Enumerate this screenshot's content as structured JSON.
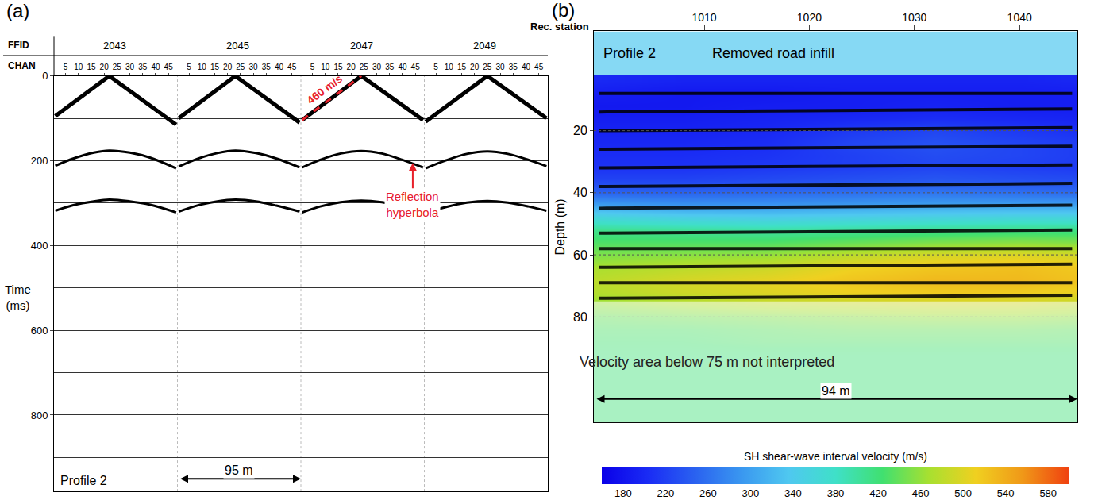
{
  "chart_data": [
    {
      "type": "seismic_record",
      "panel_label": "(a)",
      "header_labels": [
        "FFID",
        "CHAN"
      ],
      "yaxis_title": "Time (ms)",
      "profile_label": "Profile 2",
      "color": "#000000",
      "xlim": [
        0.5,
        192.5
      ],
      "channels_per_shot": 48,
      "chan_ticks": [
        5,
        10,
        15,
        20,
        25,
        30,
        35,
        40,
        45
      ],
      "ylim": [
        0,
        980
      ],
      "yticks": [
        0,
        200,
        400,
        600,
        800
      ],
      "grid": true,
      "shots": [
        {
          "ffid": 2043,
          "first_break": {
            "channels": [
              1,
              22,
              48
            ],
            "times": [
              95,
              0,
              115
            ]
          },
          "reflections": [
            {
              "channels": [
                1,
                8,
                16,
                22,
                30,
                38,
                48
              ],
              "times": [
                212,
                195,
                181,
                176,
                181,
                193,
                218
              ]
            },
            {
              "channels": [
                1,
                8,
                16,
                22,
                30,
                38,
                48
              ],
              "times": [
                318,
                305,
                296,
                292,
                296,
                304,
                322
              ]
            }
          ]
        },
        {
          "ffid": 2045,
          "first_break": {
            "channels": [
              1,
              23,
              48
            ],
            "times": [
              100,
              0,
              110
            ]
          },
          "reflections": [
            {
              "channels": [
                1,
                8,
                16,
                23,
                31,
                39,
                48
              ],
              "times": [
                214,
                196,
                182,
                176,
                182,
                195,
                216
              ]
            },
            {
              "channels": [
                1,
                8,
                16,
                23,
                31,
                39,
                48
              ],
              "times": [
                320,
                306,
                296,
                292,
                296,
                306,
                320
              ]
            }
          ]
        },
        {
          "ffid": 2047,
          "first_break": {
            "channels": [
              1,
              24,
              48
            ],
            "times": [
              104,
              0,
              104
            ]
          },
          "reflections": [
            {
              "channels": [
                1,
                8,
                16,
                24,
                32,
                40,
                48
              ],
              "times": [
                216,
                198,
                183,
                177,
                183,
                198,
                216
              ]
            },
            {
              "channels": [
                1,
                8,
                16,
                24,
                32,
                40,
                48
              ],
              "times": [
                322,
                308,
                298,
                294,
                298,
                308,
                322
              ]
            }
          ]
        },
        {
          "ffid": 2049,
          "first_break": {
            "channels": [
              1,
              25,
              48
            ],
            "times": [
              108,
              0,
              100
            ]
          },
          "reflections": [
            {
              "channels": [
                1,
                9,
                17,
                25,
                33,
                41,
                48
              ],
              "times": [
                218,
                199,
                184,
                178,
                184,
                198,
                213
              ]
            },
            {
              "channels": [
                1,
                9,
                17,
                25,
                33,
                41,
                48
              ],
              "times": [
                324,
                309,
                299,
                295,
                299,
                308,
                318
              ]
            }
          ]
        }
      ],
      "velocity_label": {
        "text": "460 m/s",
        "color": "#e8202a",
        "line_style": "dashed",
        "x": [
          97,
          120
        ],
        "y": [
          104,
          0
        ]
      },
      "reflection_label": {
        "text": "Reflection hyperbola",
        "color": "#e8202a",
        "x": 140,
        "y": 205
      },
      "scale_bar": {
        "text": "95 m",
        "x": [
          48.5,
          96.5
        ]
      }
    },
    {
      "type": "heatmap",
      "panel_label": "(b)",
      "profile_label": "Profile 2",
      "xaxis_title": "Rec. station",
      "yaxis_title": "Depth (m)",
      "color": "#000000",
      "xlim": [
        999.5,
        1045.5
      ],
      "xticks": [
        1010,
        1020,
        1030,
        1040
      ],
      "ylim": [
        -12,
        114
      ],
      "yticks": [
        20,
        40,
        60,
        80
      ],
      "grid": true,
      "x": [
        1000,
        1008,
        1016,
        1024,
        1032,
        1040,
        1048
      ],
      "y": [
        4,
        8,
        12,
        16,
        20,
        24,
        28,
        32,
        36,
        40,
        44,
        48,
        52,
        56,
        60,
        64,
        68,
        72,
        76,
        80,
        84,
        88,
        92,
        96,
        100,
        104,
        108,
        112
      ],
      "z": [
        [
          200,
          195,
          195,
          195,
          195,
          195,
          200
        ],
        [
          190,
          185,
          185,
          190,
          190,
          190,
          190
        ],
        [
          185,
          185,
          190,
          190,
          195,
          190,
          190
        ],
        [
          190,
          190,
          195,
          200,
          205,
          200,
          195
        ],
        [
          195,
          195,
          200,
          215,
          225,
          215,
          205
        ],
        [
          200,
          200,
          205,
          225,
          235,
          225,
          215
        ],
        [
          205,
          205,
          210,
          220,
          230,
          225,
          215
        ],
        [
          210,
          210,
          215,
          220,
          225,
          220,
          215
        ],
        [
          225,
          225,
          230,
          235,
          240,
          235,
          230
        ],
        [
          250,
          250,
          255,
          260,
          265,
          260,
          255
        ],
        [
          300,
          290,
          290,
          295,
          300,
          300,
          300
        ],
        [
          360,
          350,
          345,
          350,
          355,
          360,
          360
        ],
        [
          410,
          405,
          400,
          405,
          410,
          415,
          415
        ],
        [
          430,
          430,
          430,
          440,
          450,
          455,
          450
        ],
        [
          450,
          455,
          460,
          480,
          495,
          500,
          490
        ],
        [
          470,
          480,
          490,
          510,
          520,
          525,
          515
        ],
        [
          480,
          495,
          505,
          520,
          530,
          530,
          520
        ],
        [
          475,
          490,
          500,
          510,
          515,
          515,
          505
        ],
        [
          460,
          470,
          480,
          485,
          490,
          490,
          480
        ],
        [
          440,
          445,
          450,
          455,
          460,
          460,
          455
        ],
        [
          430,
          430,
          435,
          440,
          440,
          440,
          435
        ],
        [
          425,
          425,
          430,
          430,
          430,
          430,
          430
        ],
        [
          420,
          420,
          420,
          420,
          420,
          420,
          420
        ],
        [
          420,
          420,
          420,
          420,
          420,
          420,
          420
        ],
        [
          420,
          420,
          420,
          420,
          420,
          420,
          420
        ],
        [
          420,
          420,
          420,
          420,
          420,
          420,
          420
        ],
        [
          420,
          420,
          420,
          420,
          420,
          420,
          420
        ],
        [
          420,
          420,
          420,
          420,
          420,
          420,
          420
        ]
      ],
      "colorbar": {
        "title": "SH shear-wave interval velocity (m/s)",
        "range": [
          160,
          600
        ],
        "ticks": [
          180,
          220,
          260,
          300,
          340,
          380,
          420,
          460,
          500,
          540,
          580
        ]
      },
      "infill": {
        "label": "Removed road infill",
        "depth": [
          -12,
          2
        ]
      },
      "uninterpreted": {
        "label": "Velocity area below 75 m not interpreted",
        "below": 75
      },
      "reflectors": [
        {
          "x": [
            1000,
            1045
          ],
          "depth": [
            8,
            8
          ]
        },
        {
          "x": [
            1000,
            1045
          ],
          "depth": [
            14,
            13
          ]
        },
        {
          "x": [
            1000,
            1045
          ],
          "depth": [
            20,
            19
          ]
        },
        {
          "x": [
            1000,
            1045
          ],
          "depth": [
            26,
            25
          ]
        },
        {
          "x": [
            1000,
            1045
          ],
          "depth": [
            32,
            31
          ]
        },
        {
          "x": [
            1000,
            1045
          ],
          "depth": [
            38,
            37
          ]
        },
        {
          "x": [
            1000,
            1045
          ],
          "depth": [
            45,
            44
          ]
        },
        {
          "x": [
            1000,
            1045
          ],
          "depth": [
            53,
            52
          ]
        },
        {
          "x": [
            1000,
            1045
          ],
          "depth": [
            58,
            58
          ]
        },
        {
          "x": [
            1000,
            1045
          ],
          "depth": [
            64,
            63
          ]
        },
        {
          "x": [
            1000,
            1045
          ],
          "depth": [
            69,
            69
          ]
        },
        {
          "x": [
            1000,
            1045
          ],
          "depth": [
            74,
            73
          ]
        }
      ],
      "scale_bar": {
        "text": "94 m",
        "x": [
          999.5,
          1045.5
        ]
      }
    }
  ]
}
